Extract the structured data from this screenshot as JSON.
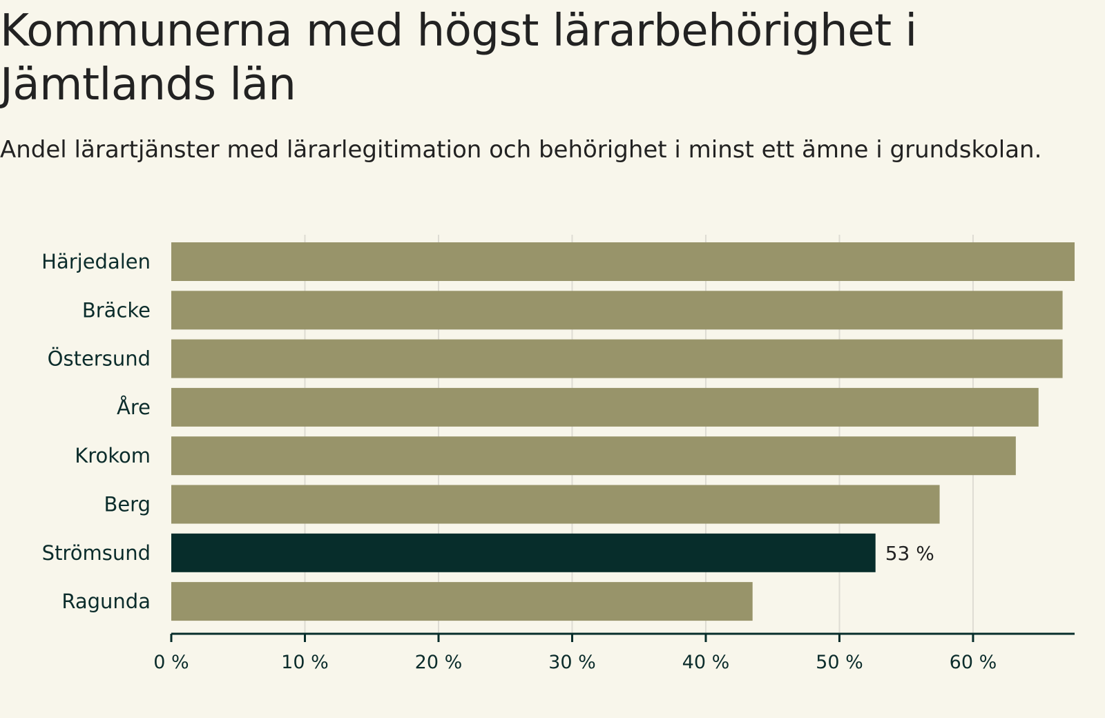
{
  "title": "Kommunerna med högst lärarbehörighet i Jämtlands län",
  "subtitle": "Andel lärartjänster med lärarlegitimation och behörighet i minst ett ämne i grundskolan.",
  "colors": {
    "background": "#f8f6eb",
    "bar": "#98946a",
    "highlight": "#072d2b",
    "grid": "#dedcd3",
    "axis": "#072d2b",
    "text": "#0b2c2b"
  },
  "chart_data": {
    "type": "bar",
    "orientation": "horizontal",
    "categories": [
      "Härjedalen",
      "Bräcke",
      "Östersund",
      "Åre",
      "Krokom",
      "Berg",
      "Strömsund",
      "Ragunda"
    ],
    "values": [
      67.6,
      66.7,
      66.7,
      64.9,
      63.2,
      57.5,
      52.7,
      43.5
    ],
    "highlight": "Strömsund",
    "annotations": [
      {
        "category": "Strömsund",
        "label": "53 %"
      }
    ],
    "xlim": [
      0,
      67.6
    ],
    "xticks": [
      0,
      10,
      20,
      30,
      40,
      50,
      60
    ],
    "xtick_labels": [
      "0 %",
      "10 %",
      "20 %",
      "30 %",
      "40 %",
      "50 %",
      "60 %"
    ],
    "grid": true,
    "xlabel": "",
    "ylabel": ""
  }
}
